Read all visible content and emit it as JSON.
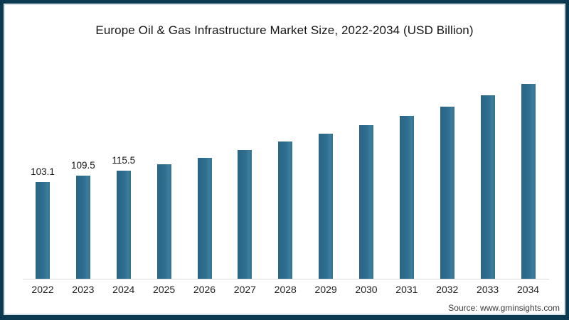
{
  "frame": {
    "border_color": "#0c3950",
    "inner_edge_color": "#d7e1e8",
    "background_color": "#ffffff"
  },
  "chart_data": {
    "type": "bar",
    "title": "Europe Oil & Gas Infrastructure Market Size, 2022-2034 (USD Billion)",
    "categories": [
      "2022",
      "2023",
      "2024",
      "2025",
      "2026",
      "2027",
      "2028",
      "2029",
      "2030",
      "2031",
      "2032",
      "2033",
      "2034"
    ],
    "values": [
      103.1,
      109.5,
      115.5,
      121.6,
      129.1,
      136.8,
      145.9,
      154.2,
      163.3,
      173.2,
      183.1,
      195.2,
      207.4
    ],
    "value_labels": [
      "103.1",
      "109.5",
      "115.5",
      "",
      "",
      "",
      "",
      "",
      "",
      "",
      "",
      "",
      ""
    ],
    "bar_color": "#2e6e8e",
    "axis_line_color": "#d9d9d9",
    "ylim": [
      0,
      220
    ],
    "gridlines": false,
    "y_axis_visible": false,
    "legend_position": "none"
  },
  "source": "Source: www.gminsights.com"
}
